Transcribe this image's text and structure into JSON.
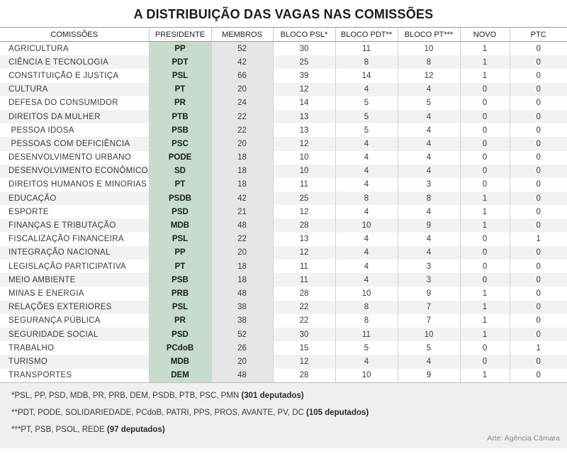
{
  "title": "A DISTRIBUIÇÃO DAS VAGAS NAS COMISSÕES",
  "header": [
    "COMISSÕES",
    "PRESIDENTE",
    "MEMBROS",
    "BLOCO PSL*",
    "BLOCO PDT**",
    "BLOCO PT***",
    "NOVO",
    "PTC"
  ],
  "rows": [
    [
      "AGRICULTURA",
      "PP",
      "52",
      "30",
      "11",
      "10",
      "1",
      "0"
    ],
    [
      "CIÊNCIA E TECNOLOGIA",
      "PDT",
      "42",
      "25",
      "8",
      "8",
      "1",
      "0"
    ],
    [
      "CONSTITUIÇÃO E JUSTIÇA",
      "PSL",
      "66",
      "39",
      "14",
      "12",
      "1",
      "0"
    ],
    [
      "CULTURA",
      "PT",
      "20",
      "12",
      "4",
      "4",
      "0",
      "0"
    ],
    [
      "DEFESA DO CONSUMIDOR",
      "PR",
      "24",
      "14",
      "5",
      "5",
      "0",
      "0"
    ],
    [
      "DIREITOS DA MULHER",
      "PTB",
      "22",
      "13",
      "5",
      "4",
      "0",
      "0"
    ],
    [
      " PESSOA IDOSA",
      "PSB",
      "22",
      "13",
      "5",
      "4",
      "0",
      "0"
    ],
    [
      " PESSOAS COM DEFICIÊNCIA",
      "PSC",
      "20",
      "12",
      "4",
      "4",
      "0",
      "0"
    ],
    [
      "DESENVOLVIMENTO URBANO",
      "PODE",
      "18",
      "10",
      "4",
      "4",
      "0",
      "0"
    ],
    [
      "DESENVOLVIMENTO ECONÔMICO",
      "SD",
      "18",
      "10",
      "4",
      "4",
      "0",
      "0"
    ],
    [
      "DIREITOS HUMANOS E MINORIAS",
      "PT",
      "18",
      "11",
      "4",
      "3",
      "0",
      "0"
    ],
    [
      "EDUCAÇÃO",
      "PSDB",
      "42",
      "25",
      "8",
      "8",
      "1",
      "0"
    ],
    [
      "ESPORTE",
      "PSD",
      "21",
      "12",
      "4",
      "4",
      "1",
      "0"
    ],
    [
      "FINANÇAS E TRIBUTAÇÃO",
      "MDB",
      "48",
      "28",
      "10",
      "9",
      "1",
      "0"
    ],
    [
      "FISCALIZAÇÃO FINANCEIRA",
      "PSL",
      "22",
      "13",
      "4",
      "4",
      "0",
      "1"
    ],
    [
      "INTEGRAÇÃO NACIONAL",
      "PP",
      "20",
      "12",
      "4",
      "4",
      "0",
      "0"
    ],
    [
      "LEGISLAÇÃO PARTICIPATIVA",
      "PT",
      "18",
      "11",
      "4",
      "3",
      "0",
      "0"
    ],
    [
      "MEIO AMBIENTE",
      "PSB",
      "18",
      "11",
      "4",
      "3",
      "0",
      "0"
    ],
    [
      "MINAS E ENERGIA",
      "PRB",
      "48",
      "28",
      "10",
      "9",
      "1",
      "0"
    ],
    [
      "RELAÇÕES EXTERIORES",
      "PSL",
      "38",
      "22",
      "8",
      "7",
      "1",
      "0"
    ],
    [
      "SEGURANÇA PÚBLICA",
      "PR",
      "38",
      "22",
      "8",
      "7",
      "1",
      "0"
    ],
    [
      "SEGURIDADE SOCIAL",
      "PSD",
      "52",
      "30",
      "11",
      "10",
      "1",
      "0"
    ],
    [
      "TRABALHO",
      "PCdoB",
      "26",
      "15",
      "5",
      "5",
      "0",
      "1"
    ],
    [
      "TURISMO",
      "MDB",
      "20",
      "12",
      "4",
      "4",
      "0",
      "0"
    ],
    [
      "TRANSPORTES",
      "DEM",
      "48",
      "28",
      "10",
      "9",
      "1",
      "0"
    ]
  ],
  "footnotes": [
    {
      "text": "*PSL, PP, PSD, MDB, PR, PRB, DEM, PSDB, PTB, PSC, PMN",
      "bold": "(301 deputados)"
    },
    {
      "text": "**PDT, PODE, SOLIDARIEDADE, PCdoB, PATRI, PPS, PROS, AVANTE, PV, DC",
      "bold": "(105 deputados)"
    },
    {
      "text": "***PT, PSB, PSOL, REDE",
      "bold": "(97 deputados)"
    }
  ],
  "credit": "Arte: Agência Câmara",
  "colors": {
    "president_column": "#c7dccf",
    "members_column": "#e6e6e6",
    "stripe": "#f2f2f2",
    "footer_bg": "#efefef"
  }
}
